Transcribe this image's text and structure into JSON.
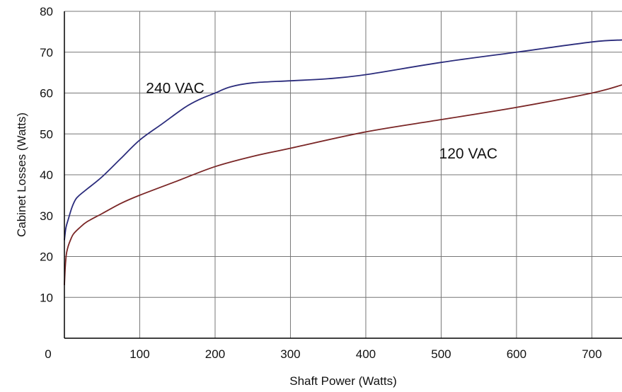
{
  "chart_data": {
    "type": "line",
    "title": "",
    "xlabel": "Shaft Power (Watts)",
    "ylabel": "Cabinet Losses (Watts)",
    "xlim": [
      0,
      740
    ],
    "ylim": [
      0,
      80
    ],
    "xticks": [
      0,
      100,
      200,
      300,
      400,
      500,
      600,
      700
    ],
    "yticks": [
      10,
      20,
      30,
      40,
      50,
      60,
      70,
      80
    ],
    "x_tick_labels": [
      "0",
      "100",
      "200",
      "300",
      "400",
      "500",
      "600",
      "700"
    ],
    "y_tick_labels": [
      "10",
      "20",
      "30",
      "40",
      "50",
      "60",
      "70",
      "80"
    ],
    "grid": true,
    "legend": "none",
    "series": [
      {
        "name": "240 VAC",
        "color": "#2b2c7c",
        "x": [
          0,
          2,
          5,
          10,
          15,
          20,
          30,
          50,
          75,
          100,
          130,
          160,
          180,
          200,
          220,
          250,
          300,
          350,
          400,
          500,
          600,
          700,
          740
        ],
        "y": [
          24,
          27,
          29,
          32,
          34,
          35,
          36.5,
          39.5,
          44,
          48.5,
          52.5,
          56.5,
          58.5,
          60,
          61.5,
          62.5,
          63,
          63.5,
          64.5,
          67.5,
          70,
          72.5,
          73
        ]
      },
      {
        "name": "120 VAC",
        "color": "#7a2626",
        "x": [
          0,
          1,
          2,
          3,
          5,
          8,
          12,
          20,
          30,
          50,
          75,
          100,
          150,
          200,
          250,
          300,
          400,
          500,
          600,
          700,
          740
        ],
        "y": [
          13,
          17,
          19.5,
          21,
          22.5,
          24,
          25.5,
          27,
          28.5,
          30.5,
          33,
          35,
          38.5,
          42,
          44.5,
          46.5,
          50.5,
          53.5,
          56.5,
          60,
          62
        ]
      }
    ]
  }
}
